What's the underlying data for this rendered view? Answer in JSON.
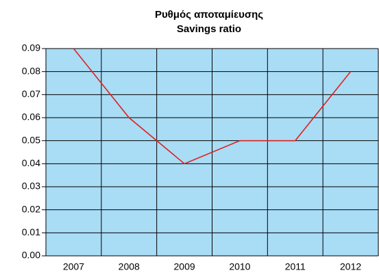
{
  "chart_data": {
    "type": "line",
    "title": "Ρυθμός αποταμίευσης",
    "subtitle": "Savings ratio",
    "categories": [
      "2007",
      "2008",
      "2009",
      "2010",
      "2011",
      "2012"
    ],
    "series": [
      {
        "name": "Savings ratio",
        "color": "#e0201c",
        "values": [
          0.09,
          0.06,
          0.04,
          0.05,
          0.05,
          0.08
        ]
      }
    ],
    "ylim": [
      0,
      0.09
    ],
    "yticks": [
      {
        "value": 0,
        "label": "0.00"
      },
      0.01,
      0.02,
      0.03,
      0.04,
      0.05,
      0.06,
      0.07,
      0.08,
      0.09
    ],
    "grid": true,
    "background": "#a9dcf5"
  }
}
